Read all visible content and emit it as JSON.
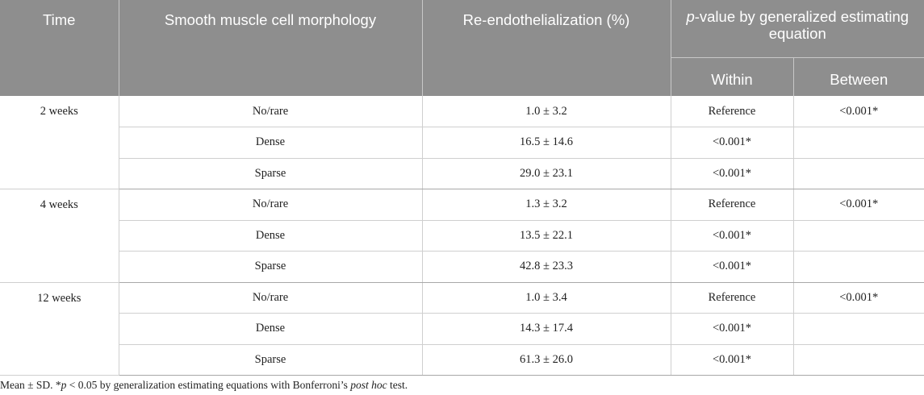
{
  "header": {
    "time": "Time",
    "morphology": "Smooth muscle cell morphology",
    "reendo": "Re-endothelialization (%)",
    "pvalue_italic": "p",
    "pvalue_rest": "-value by generalized estimating equation",
    "within": "Within",
    "between": "Between"
  },
  "groups": [
    {
      "time": "2 weeks",
      "rows": [
        {
          "morphology": "No/rare",
          "reendo": "1.0 ± 3.2",
          "within": "Reference",
          "between": "<0.001*"
        },
        {
          "morphology": "Dense",
          "reendo": "16.5 ± 14.6",
          "within": "<0.001*",
          "between": ""
        },
        {
          "morphology": "Sparse",
          "reendo": "29.0 ± 23.1",
          "within": "<0.001*",
          "between": ""
        }
      ]
    },
    {
      "time": "4 weeks",
      "rows": [
        {
          "morphology": "No/rare",
          "reendo": "1.3 ± 3.2",
          "within": "Reference",
          "between": "<0.001*"
        },
        {
          "morphology": "Dense",
          "reendo": "13.5 ± 22.1",
          "within": "<0.001*",
          "between": ""
        },
        {
          "morphology": "Sparse",
          "reendo": "42.8 ± 23.3",
          "within": "<0.001*",
          "between": ""
        }
      ]
    },
    {
      "time": "12 weeks",
      "rows": [
        {
          "morphology": "No/rare",
          "reendo": "1.0 ± 3.4",
          "within": "Reference",
          "between": "<0.001*"
        },
        {
          "morphology": "Dense",
          "reendo": "14.3 ± 17.4",
          "within": "<0.001*",
          "between": ""
        },
        {
          "morphology": "Sparse",
          "reendo": "61.3 ± 26.0",
          "within": "<0.001*",
          "between": ""
        }
      ]
    }
  ],
  "footnote": {
    "part1": "Mean ± SD. *",
    "p": "p",
    "part2": " < 0.05 by generalization estimating equations with Bonferroni’s ",
    "posthoc": "post hoc",
    "part3": " test."
  }
}
